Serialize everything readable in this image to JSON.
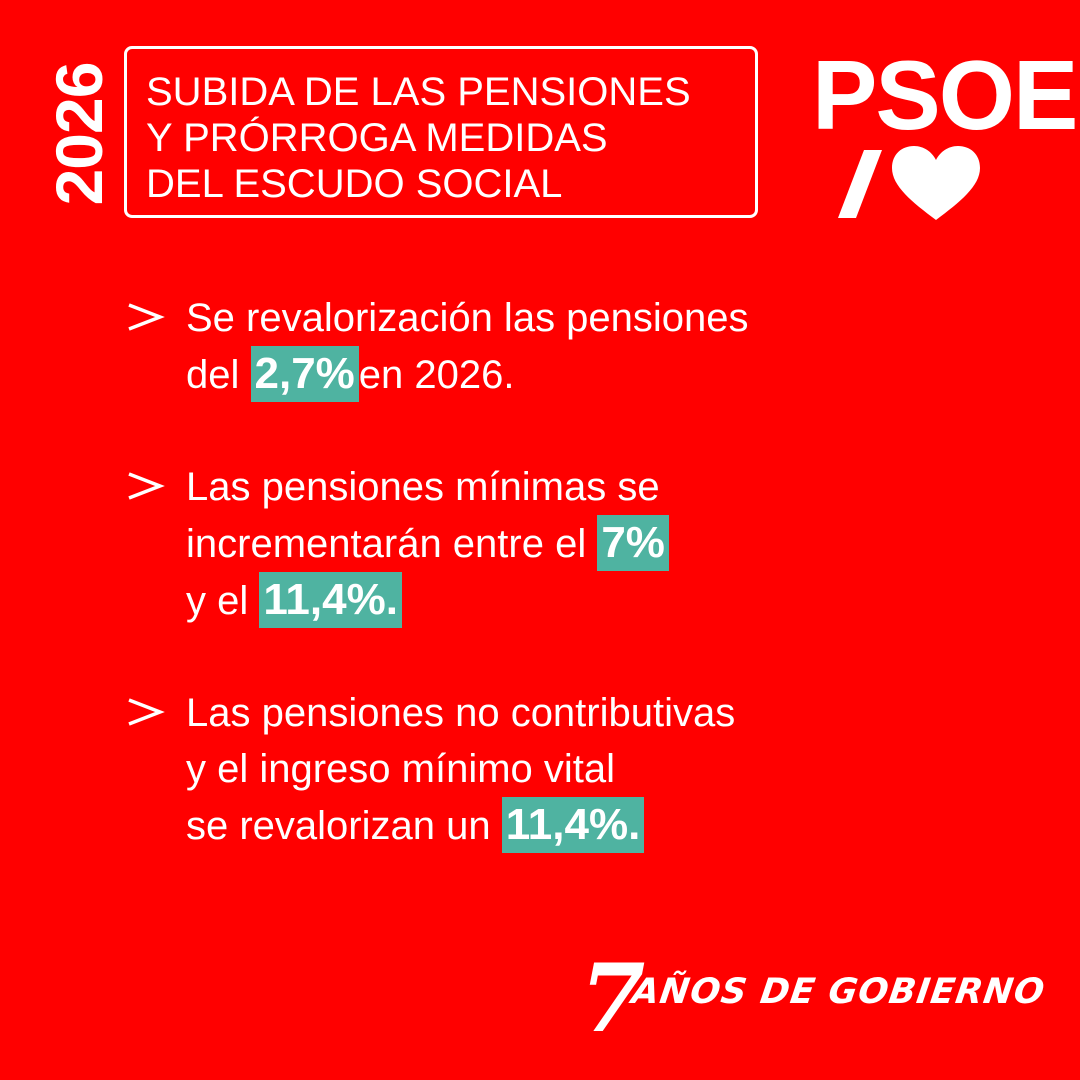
{
  "year": "2026",
  "title": {
    "lines": [
      "SUBIDA DE LAS PENSIONES",
      "Y PRÓRROGA MEDIDAS",
      "DEL ESCUDO SOCIAL"
    ]
  },
  "logo": {
    "text": "PSOE",
    "icon": "slash-heart-icon"
  },
  "bullets": [
    {
      "line1": "Se revalorización las pensiones",
      "line2_pre": "del ",
      "line2_highlight": "2,7%",
      "line2_post": "en 2026."
    },
    {
      "line1": "Las pensiones mínimas se",
      "line2_pre": "incrementarán entre el ",
      "line2_highlight": "7%",
      "line3_pre": "y el ",
      "line3_highlight": "11,4%."
    },
    {
      "line1": "Las pensiones no contributivas",
      "line2": "y el ingreso mínimo vital",
      "line3_pre": "se revalorizan un ",
      "line3_highlight": "11,4%."
    }
  ],
  "footer": {
    "number": "7",
    "text": "AÑOS DE GOBIERNO"
  },
  "colors": {
    "background": "#ff0000",
    "highlight": "#4fb3a1",
    "text": "#ffffff"
  }
}
